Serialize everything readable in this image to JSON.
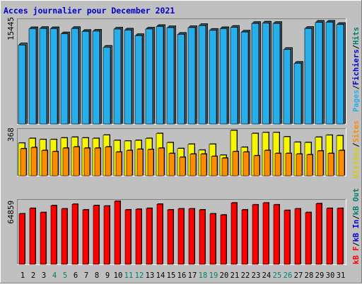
{
  "chart_data": {
    "type": "bar",
    "title": "Acces journalier pour December 2021",
    "colors": {
      "background": "#c0c0c0",
      "plot_background": "#c0c0c0",
      "title": "#0000cc",
      "pages": "#27aeeb",
      "hits": "#4bb8cc",
      "visits": "#f6f600",
      "sites": "#ff8c00",
      "kbytes": "#ff0000",
      "axis_text": "#000000",
      "weekend_day": "#00806b",
      "weekday_day": "#000000"
    },
    "legend": {
      "right_top": [
        {
          "text": "Pages",
          "color": "#27aeeb"
        },
        {
          "text": "/",
          "color": "#000000"
        },
        {
          "text": "Fichiers",
          "color": "#0000cc"
        },
        {
          "text": "/",
          "color": "#000000"
        },
        {
          "text": "Hits",
          "color": "#00806b"
        }
      ],
      "right_mid": [
        {
          "text": "Visites",
          "color": "#d0d000"
        },
        {
          "text": "/",
          "color": "#000000"
        },
        {
          "text": "Sites",
          "color": "#ff8c00"
        }
      ],
      "right_bottom": [
        {
          "text": "kB F",
          "color": "#ff0000"
        },
        {
          "text": "/",
          "color": "#000000"
        },
        {
          "text": "kB In",
          "color": "#0000cc"
        },
        {
          "text": "/",
          "color": "#000000"
        },
        {
          "text": "kB Out",
          "color": "#00806b"
        }
      ]
    },
    "panels": {
      "top": {
        "max_label": "15445",
        "ylim": [
          0,
          15445
        ],
        "series": [
          {
            "name": "Hits",
            "values": [
              12030,
              14430,
              14470,
              14430,
              13670,
              14470,
              14030,
              14070,
              11660,
              14390,
              14230,
              13410,
              14390,
              14760,
              14590,
              13590,
              14600,
              14910,
              14190,
              14440,
              14630,
              13940,
              15220,
              15270,
              15220,
              11340,
              9270,
              14480,
              15390,
              15400,
              15060
            ]
          },
          {
            "name": "Fichiers",
            "values": [
              11780,
              14230,
              14270,
              14230,
              13470,
              14260,
              13830,
              13870,
              11450,
              14180,
              14020,
              13200,
              14190,
              14560,
              14390,
              13380,
              14400,
              14700,
              13990,
              14240,
              14430,
              13730,
              15020,
              15060,
              15020,
              11130,
              9060,
              14270,
              15180,
              15200,
              14860
            ]
          },
          {
            "name": "Pages",
            "values": [
              11780,
              14230,
              14270,
              14230,
              13470,
              14260,
              13830,
              13870,
              11450,
              14180,
              14020,
              13200,
              14190,
              14560,
              14390,
              13380,
              14400,
              14700,
              13990,
              14240,
              14430,
              13730,
              15020,
              15060,
              15020,
              11130,
              9060,
              14270,
              15180,
              15200,
              14860
            ]
          }
        ]
      },
      "middle": {
        "max_label": "368",
        "ylim": [
          0,
          368
        ],
        "series": [
          {
            "name": "Visites",
            "values": [
              265,
              303,
              294,
              294,
              307,
              313,
              307,
              303,
              330,
              287,
              282,
              287,
              303,
              343,
              269,
              221,
              256,
              208,
              256,
              167,
              368,
              231,
              343,
              351,
              351,
              316,
              272,
              270,
              313,
              329,
              325
            ]
          },
          {
            "name": "Sites",
            "values": [
              219,
              229,
              205,
              196,
              224,
              234,
              224,
              224,
              234,
              192,
              205,
              215,
              213,
              224,
              181,
              150,
              176,
              176,
              157,
              143,
              196,
              192,
              162,
              205,
              181,
              181,
              176,
              171,
              201,
              181,
              205
            ]
          }
        ]
      },
      "bottom": {
        "max_label": "64859",
        "ylim": [
          0,
          64859
        ],
        "series": [
          {
            "name": "kB F",
            "values": [
              51960,
              57600,
              53340,
              60370,
              57080,
              61780,
              56070,
              60490,
              59980,
              64860,
              56070,
              56640,
              57600,
              61880,
              56120,
              57080,
              57080,
              56070,
              51960,
              50750,
              63130,
              56070,
              61270,
              63130,
              61270,
              55490,
              57080,
              53340,
              62390,
              57600,
              57600
            ]
          }
        ]
      }
    },
    "days": [
      {
        "label": "1",
        "weekend": false
      },
      {
        "label": "2",
        "weekend": false
      },
      {
        "label": "3",
        "weekend": false
      },
      {
        "label": "4",
        "weekend": true
      },
      {
        "label": "5",
        "weekend": true
      },
      {
        "label": "6",
        "weekend": false
      },
      {
        "label": "7",
        "weekend": false
      },
      {
        "label": "8",
        "weekend": false
      },
      {
        "label": "9",
        "weekend": false
      },
      {
        "label": "10",
        "weekend": false
      },
      {
        "label": "11",
        "weekend": true
      },
      {
        "label": "12",
        "weekend": true
      },
      {
        "label": "13",
        "weekend": false
      },
      {
        "label": "14",
        "weekend": false
      },
      {
        "label": "15",
        "weekend": false
      },
      {
        "label": "16",
        "weekend": false
      },
      {
        "label": "17",
        "weekend": false
      },
      {
        "label": "18",
        "weekend": true
      },
      {
        "label": "19",
        "weekend": true
      },
      {
        "label": "20",
        "weekend": false
      },
      {
        "label": "21",
        "weekend": false
      },
      {
        "label": "22",
        "weekend": false
      },
      {
        "label": "23",
        "weekend": false
      },
      {
        "label": "24",
        "weekend": false
      },
      {
        "label": "25",
        "weekend": true
      },
      {
        "label": "26",
        "weekend": true
      },
      {
        "label": "27",
        "weekend": false
      },
      {
        "label": "28",
        "weekend": false
      },
      {
        "label": "29",
        "weekend": false
      },
      {
        "label": "30",
        "weekend": false
      },
      {
        "label": "31",
        "weekend": false
      }
    ]
  }
}
